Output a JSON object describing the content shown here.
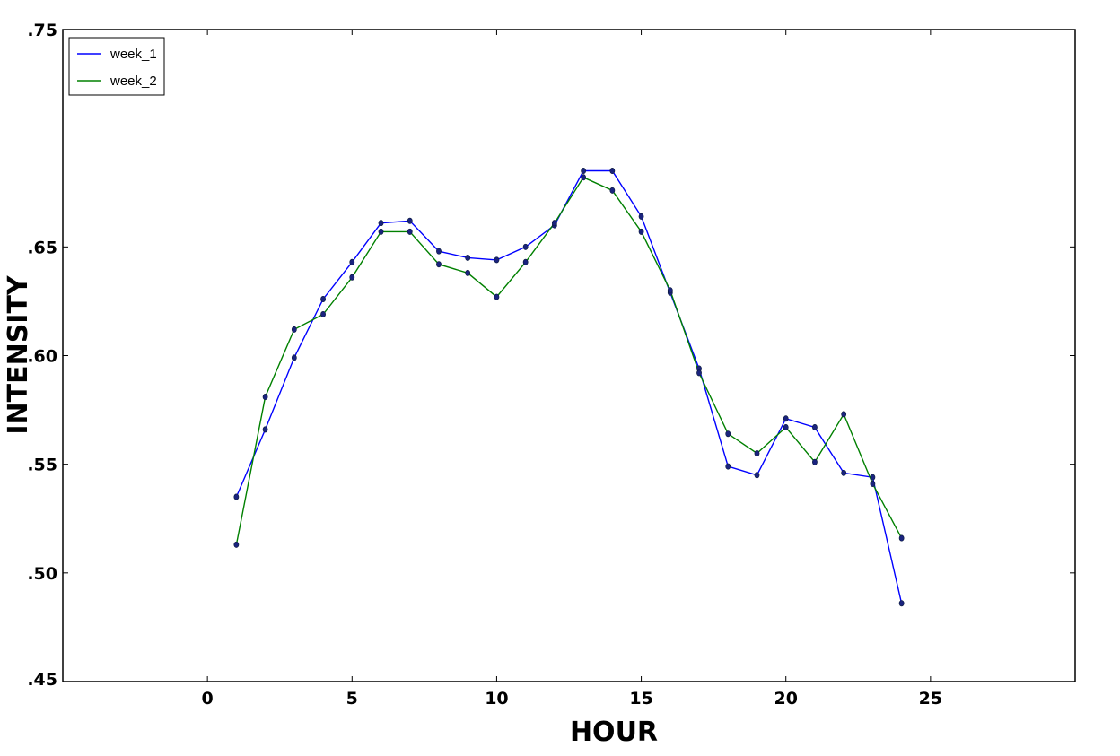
{
  "chart_data": {
    "type": "line",
    "title": "",
    "xlabel": "HOUR",
    "ylabel": "INTENSITY",
    "xlim": [
      -5,
      30
    ],
    "ylim": [
      0.45,
      0.75
    ],
    "xticks": [
      0,
      5,
      10,
      15,
      20,
      25
    ],
    "xtick_labels": [
      "0",
      "5",
      "10",
      "15",
      "20",
      "25"
    ],
    "yticks": [
      0.45,
      0.5,
      0.55,
      0.6,
      0.65,
      0.75
    ],
    "ytick_labels": [
      ".45",
      ".50",
      ".55",
      ".60",
      ".65",
      ".75"
    ],
    "grid": false,
    "legend": {
      "position": "top-left",
      "entries": [
        {
          "name": "week_1",
          "color": "#0000ff"
        },
        {
          "name": "week_2",
          "color": "#008000"
        }
      ]
    },
    "marker_color": "#1a237e",
    "x": [
      1,
      2,
      3,
      4,
      5,
      6,
      7,
      8,
      9,
      10,
      11,
      12,
      13,
      14,
      15,
      16,
      17,
      18,
      19,
      20,
      21,
      22,
      23,
      24
    ],
    "series": [
      {
        "name": "week_1",
        "color": "#0000ff",
        "values": [
          0.535,
          0.566,
          0.599,
          0.626,
          0.643,
          0.661,
          0.662,
          0.648,
          0.645,
          0.644,
          0.65,
          0.66,
          0.685,
          0.685,
          0.664,
          0.629,
          0.594,
          0.549,
          0.545,
          0.571,
          0.567,
          0.546,
          0.544,
          0.486
        ]
      },
      {
        "name": "week_2",
        "color": "#008000",
        "values": [
          0.513,
          0.581,
          0.612,
          0.619,
          0.636,
          0.657,
          0.657,
          0.642,
          0.638,
          0.627,
          0.643,
          0.661,
          0.682,
          0.676,
          0.657,
          0.63,
          0.592,
          0.564,
          0.555,
          0.567,
          0.551,
          0.573,
          0.541,
          0.516
        ]
      }
    ]
  }
}
